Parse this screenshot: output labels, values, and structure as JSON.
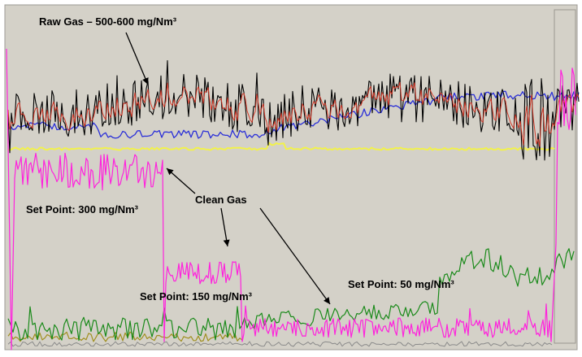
{
  "chart_data": {
    "type": "line",
    "title": "",
    "xlabel": "",
    "ylabel": "",
    "grid": false,
    "legend": "none",
    "annotations": [
      {
        "key": "raw",
        "text": "Raw Gas – 500-600 mg/Nm³"
      },
      {
        "key": "clean",
        "text": "Clean Gas"
      },
      {
        "key": "sp300",
        "text": "Set Point: 300 mg/Nm³"
      },
      {
        "key": "sp150",
        "text": "Set Point: 150 mg/Nm³"
      },
      {
        "key": "sp50",
        "text": "Set Point: 50 mg/Nm³"
      }
    ],
    "setpoint_segments": [
      {
        "label": "Set Point: 300 mg/Nm³",
        "value": 300
      },
      {
        "label": "Set Point: 150 mg/Nm³",
        "value": 150
      },
      {
        "label": "Set Point: 50 mg/Nm³",
        "value": 50
      }
    ],
    "series_colors": {
      "raw_gas": "#000000",
      "raw_gas_smoothed": "#d23a2a",
      "clean_gas": "#ff22dd",
      "blue_trace": "#2a2fd8",
      "yellow_trace": "#f2f24a",
      "green_trace": "#1a8a1a",
      "olive_trace": "#a08f1f",
      "gray_trace": "#8a8a8a"
    },
    "background": "#d4d1c8"
  }
}
